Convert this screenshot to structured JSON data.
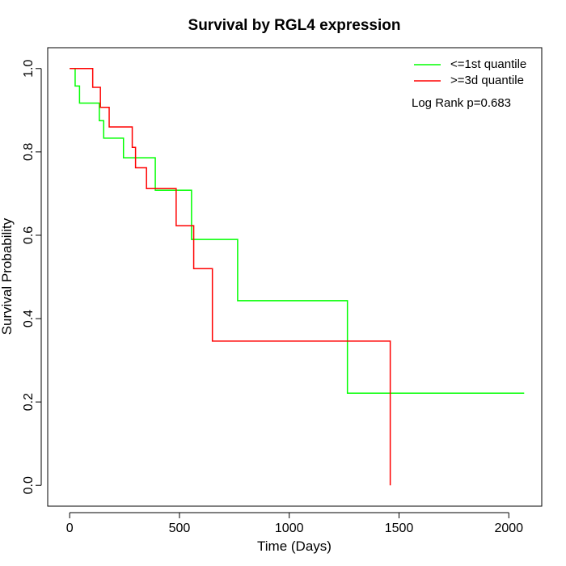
{
  "chart_data": {
    "type": "line",
    "title": "Survival by RGL4 expression",
    "xlabel": "Time (Days)",
    "ylabel": "Survival Probability",
    "xlim": [
      -100,
      2150
    ],
    "ylim": [
      -0.05,
      1.05
    ],
    "x_ticks": [
      0,
      500,
      1000,
      1500,
      2000
    ],
    "y_ticks": [
      0.0,
      0.2,
      0.4,
      0.6,
      0.8,
      1.0
    ],
    "x_tick_labels": [
      "0",
      "500",
      "1000",
      "1500",
      "2000"
    ],
    "y_tick_labels": [
      "0.0",
      "0.2",
      "0.4",
      "0.6",
      "0.8",
      "1.0"
    ],
    "grid": false,
    "legend_position": "top-right",
    "annotation": "Log Rank p=0.683",
    "series": [
      {
        "name": "<=1st quantile",
        "color": "#00FF00",
        "x": [
          0,
          25,
          25,
          45,
          45,
          135,
          135,
          155,
          155,
          245,
          245,
          390,
          390,
          555,
          555,
          765,
          765,
          1265,
          1265,
          2070
        ],
        "y": [
          1.0,
          1.0,
          0.958,
          0.958,
          0.917,
          0.917,
          0.875,
          0.875,
          0.833,
          0.833,
          0.786,
          0.786,
          0.708,
          0.708,
          0.59,
          0.59,
          0.443,
          0.443,
          0.221,
          0.221
        ]
      },
      {
        "name": ">=3d quantile",
        "color": "#FF0000",
        "x": [
          0,
          105,
          105,
          140,
          140,
          180,
          180,
          285,
          285,
          300,
          300,
          350,
          350,
          485,
          485,
          565,
          565,
          650,
          650,
          1460,
          1460
        ],
        "y": [
          1.0,
          1.0,
          0.955,
          0.955,
          0.907,
          0.907,
          0.86,
          0.86,
          0.811,
          0.811,
          0.762,
          0.762,
          0.712,
          0.712,
          0.623,
          0.623,
          0.52,
          0.52,
          0.346,
          0.346,
          0.0
        ]
      }
    ]
  }
}
